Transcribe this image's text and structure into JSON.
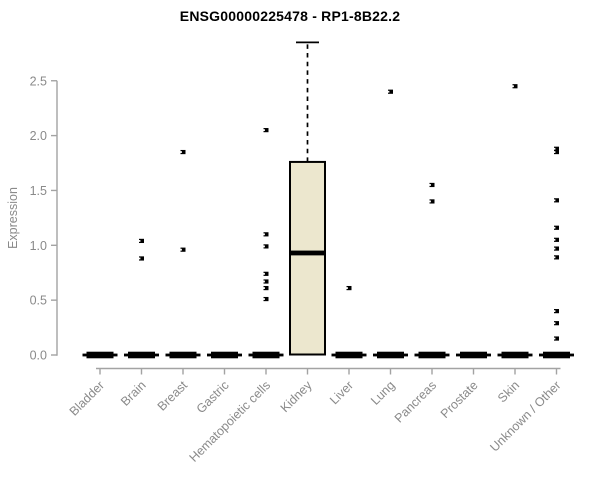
{
  "chart_data": {
    "type": "boxplot",
    "title": "ENSG00000225478 - RP1-8B22.2",
    "ylabel": "Expression",
    "xlabel": "",
    "grid": false,
    "legend": null,
    "ylim": [
      0,
      2.9
    ],
    "yticks": [
      0,
      0.5,
      1.0,
      1.5,
      2.0,
      2.5
    ],
    "ytick_labels": [
      "0.0",
      "0.5",
      "1.0",
      "1.5",
      "2.0",
      "2.5"
    ],
    "categories": [
      "Bladder",
      "Brain",
      "Breast",
      "Gastric",
      "Hematopoietic cells",
      "Kidney",
      "Liver",
      "Lung",
      "Pancreas",
      "Prostate",
      "Skin",
      "Unknown / Other"
    ],
    "series": [
      {
        "category": "Bladder",
        "min": 0,
        "q1": 0,
        "median": 0,
        "q3": 0,
        "max": 0,
        "outliers": []
      },
      {
        "category": "Brain",
        "min": 0,
        "q1": 0,
        "median": 0,
        "q3": 0,
        "max": 0,
        "outliers": [
          1.04,
          0.88
        ]
      },
      {
        "category": "Breast",
        "min": 0,
        "q1": 0,
        "median": 0,
        "q3": 0,
        "max": 0,
        "outliers": [
          1.85,
          0.96
        ]
      },
      {
        "category": "Gastric",
        "min": 0,
        "q1": 0,
        "median": 0,
        "q3": 0,
        "max": 0,
        "outliers": []
      },
      {
        "category": "Hematopoietic cells",
        "min": 0,
        "q1": 0,
        "median": 0,
        "q3": 0,
        "max": 0,
        "outliers": [
          2.05,
          1.1,
          0.99,
          0.74,
          0.67,
          0.61,
          0.51
        ]
      },
      {
        "category": "Kidney",
        "min": 0,
        "q1": 0,
        "median": 0.93,
        "q3": 1.76,
        "max": 2.85,
        "outliers": []
      },
      {
        "category": "Liver",
        "min": 0,
        "q1": 0,
        "median": 0,
        "q3": 0,
        "max": 0,
        "outliers": [
          0.61
        ]
      },
      {
        "category": "Lung",
        "min": 0,
        "q1": 0,
        "median": 0,
        "q3": 0,
        "max": 0,
        "outliers": [
          2.4
        ]
      },
      {
        "category": "Pancreas",
        "min": 0,
        "q1": 0,
        "median": 0,
        "q3": 0,
        "max": 0,
        "outliers": [
          1.55,
          1.4
        ]
      },
      {
        "category": "Prostate",
        "min": 0,
        "q1": 0,
        "median": 0,
        "q3": 0,
        "max": 0,
        "outliers": []
      },
      {
        "category": "Skin",
        "min": 0,
        "q1": 0,
        "median": 0,
        "q3": 0,
        "max": 0,
        "outliers": [
          2.45
        ]
      },
      {
        "category": "Unknown / Other",
        "min": 0,
        "q1": 0,
        "median": 0,
        "q3": 0,
        "max": 0,
        "outliers": [
          1.88,
          1.85,
          1.41,
          1.16,
          1.05,
          0.97,
          0.89,
          0.4,
          0.29,
          0.15
        ]
      }
    ],
    "colors": {
      "background": "#FFFFFF",
      "title": "#000000",
      "axis_line": "#A3A3A3",
      "axis_text": "#8A8A8A",
      "box_fill": "#ECE7CE",
      "box_stroke": "#000000",
      "median": "#000000",
      "zero_bar": "#000000",
      "outlier": "#000000",
      "outlier_notch": "#FFFFFF"
    }
  }
}
